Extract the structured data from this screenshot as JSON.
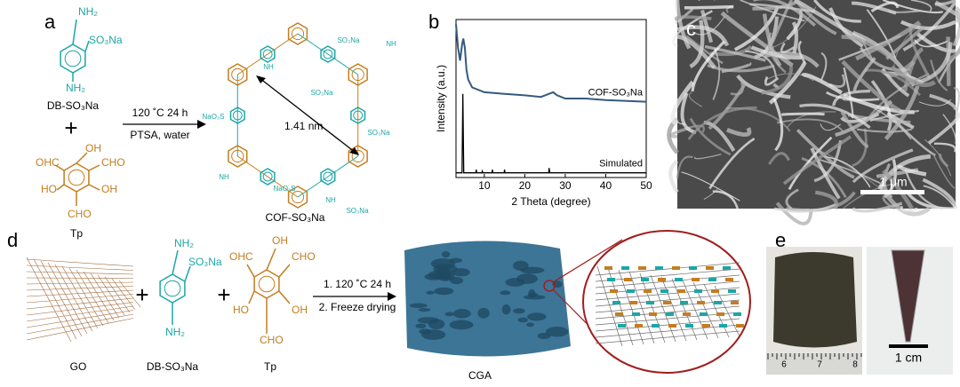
{
  "panel_labels": [
    "a",
    "b",
    "c",
    "d",
    "e"
  ],
  "panel_a": {
    "amine_groups": [
      "NH₂",
      "NH₂"
    ],
    "sulfonate": "SO₃Na",
    "amine_name": "DB-SO₃Na",
    "plus": "+",
    "aldehyde_groups": [
      "OH",
      "OHC",
      "CHO",
      "HO",
      "OH",
      "CHO"
    ],
    "aldehyde_name": "Tp",
    "conditions": [
      "120 ˚C 24 h",
      "PTSA, water"
    ],
    "pore_size": "1.41 nm",
    "product": "COF-SO₃Na",
    "structure_labels": [
      "SO₃Na",
      "SO₃Na",
      "NaO₃S",
      "NaO₃S",
      "SO₃Na",
      "SO₃Na",
      "NH",
      "NH",
      "NH",
      "NH"
    ]
  },
  "chart_data": {
    "type": "line",
    "xlabel": "2 Theta (degree)",
    "ylabel": "Intensity (a.u.)",
    "xlim": [
      3,
      50
    ],
    "ylim": [
      0,
      100
    ],
    "xticks": [
      10,
      20,
      30,
      40,
      50
    ],
    "series": [
      {
        "name": "COF-SO₃Na",
        "color": "#35597f",
        "x": [
          3,
          3.5,
          4,
          4.5,
          4.8,
          5.2,
          5.6,
          6,
          7,
          8,
          10,
          15,
          20,
          24,
          26,
          27,
          28,
          30,
          35,
          40,
          50
        ],
        "values": [
          97,
          82,
          74,
          84,
          88,
          82,
          68,
          62,
          57,
          56,
          54,
          53,
          52,
          51,
          53,
          54,
          52,
          50,
          50,
          49,
          48
        ]
      },
      {
        "name": "Simulated",
        "color": "#000000",
        "x": [
          3,
          4.5,
          4.7,
          4.9,
          7.9,
          8,
          8.1,
          9.4,
          9.5,
          9.6,
          11.9,
          12,
          12.1,
          14.9,
          15,
          15.1,
          25.9,
          26,
          26.2,
          30,
          50
        ],
        "values": [
          3,
          3,
          53,
          3,
          3,
          5,
          3,
          3,
          4,
          3,
          3,
          5,
          3,
          3,
          5,
          3,
          3,
          6,
          3,
          3,
          3
        ]
      }
    ]
  },
  "panel_c": {
    "scale_bar": "1 μm"
  },
  "panel_d": {
    "graphene_name": "GO",
    "plus": [
      "+",
      "+"
    ],
    "amine_groups": [
      "NH₂",
      "NH₂"
    ],
    "sulfonate": "SO₃Na",
    "amine_name": "DB-SO₃Na",
    "aldehyde_groups": [
      "OH",
      "OHC",
      "CHO",
      "HO",
      "OH",
      "CHO"
    ],
    "aldehyde_name": "Tp",
    "conditions": [
      "1. 120 ˚C 24 h",
      "2. Freeze drying"
    ],
    "product": "CGA"
  },
  "panel_e": {
    "ruler_ticks": [
      "6",
      "7",
      "8"
    ],
    "scale_bar": "1 cm"
  }
}
